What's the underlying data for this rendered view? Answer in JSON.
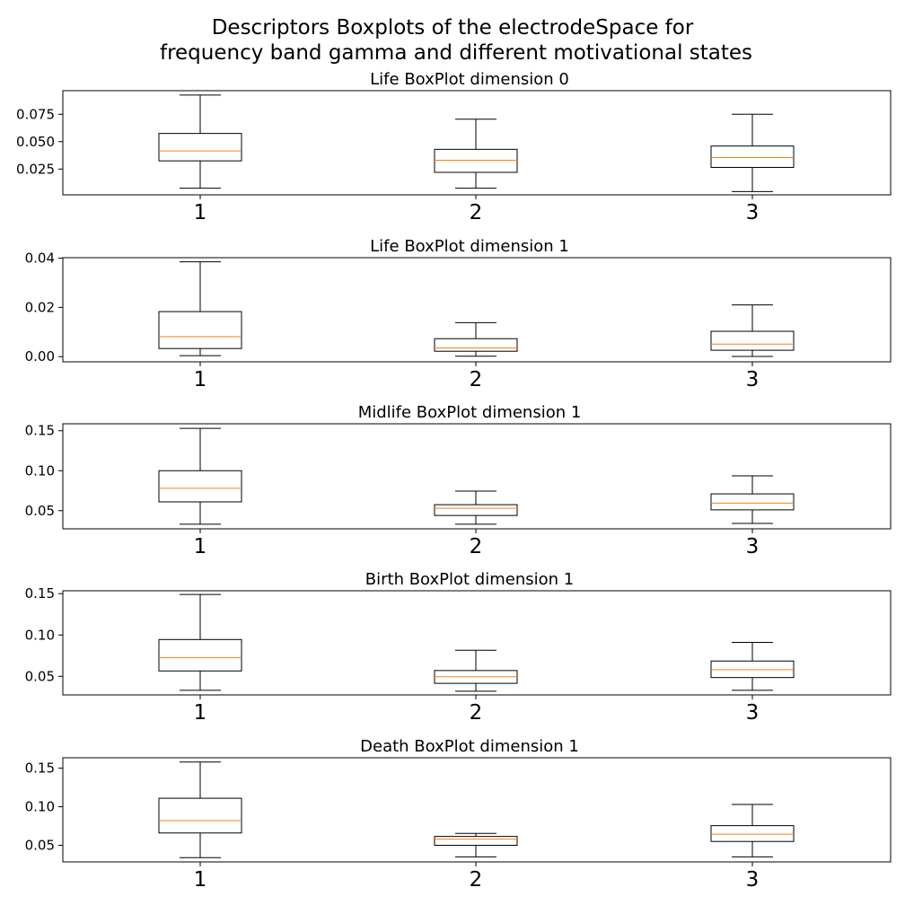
{
  "title_lines": [
    "Descriptors Boxplots of the electrodeSpace for",
    "frequency band gamma and different motivational states"
  ],
  "chart_data": [
    {
      "type": "boxplot",
      "title": "Life BoxPlot dimension 0",
      "categories": [
        "1",
        "2",
        "3"
      ],
      "ylim": [
        0.0015,
        0.0965
      ],
      "yticks": [
        0.025,
        0.05,
        0.075
      ],
      "ytick_labels": [
        "0.025",
        "0.050",
        "0.075"
      ],
      "boxes": [
        {
          "whisker_low": 0.0075,
          "q1": 0.0325,
          "median": 0.0415,
          "q3": 0.0575,
          "whisker_high": 0.0925
        },
        {
          "whisker_low": 0.0075,
          "q1": 0.022,
          "median": 0.033,
          "q3": 0.043,
          "whisker_high": 0.0705
        },
        {
          "whisker_low": 0.0045,
          "q1": 0.0265,
          "median": 0.0355,
          "q3": 0.046,
          "whisker_high": 0.075
        }
      ]
    },
    {
      "type": "boxplot",
      "title": "Life BoxPlot dimension 1",
      "categories": [
        "1",
        "2",
        "3"
      ],
      "ylim": [
        -0.0021,
        0.0402
      ],
      "yticks": [
        0.0,
        0.02,
        0.04
      ],
      "ytick_labels": [
        "0.00",
        "0.02",
        "0.04"
      ],
      "boxes": [
        {
          "whisker_low": 0.0004,
          "q1": 0.0033,
          "median": 0.0081,
          "q3": 0.0183,
          "whisker_high": 0.0385
        },
        {
          "whisker_low": 0.0002,
          "q1": 0.0022,
          "median": 0.0035,
          "q3": 0.0073,
          "whisker_high": 0.0138
        },
        {
          "whisker_low": 0.0001,
          "q1": 0.0026,
          "median": 0.0051,
          "q3": 0.0103,
          "whisker_high": 0.021
        }
      ]
    },
    {
      "type": "boxplot",
      "title": "Midlife BoxPlot dimension 1",
      "categories": [
        "1",
        "2",
        "3"
      ],
      "ylim": [
        0.0273,
        0.1587
      ],
      "yticks": [
        0.05,
        0.1,
        0.15
      ],
      "ytick_labels": [
        "0.05",
        "0.10",
        "0.15"
      ],
      "boxes": [
        {
          "whisker_low": 0.033,
          "q1": 0.061,
          "median": 0.078,
          "q3": 0.1,
          "whisker_high": 0.153
        },
        {
          "whisker_low": 0.033,
          "q1": 0.044,
          "median": 0.053,
          "q3": 0.0575,
          "whisker_high": 0.0745
        },
        {
          "whisker_low": 0.034,
          "q1": 0.051,
          "median": 0.0595,
          "q3": 0.071,
          "whisker_high": 0.0935
        }
      ]
    },
    {
      "type": "boxplot",
      "title": "Birth BoxPlot dimension 1",
      "categories": [
        "1",
        "2",
        "3"
      ],
      "ylim": [
        0.0275,
        0.1535
      ],
      "yticks": [
        0.05,
        0.1,
        0.15
      ],
      "ytick_labels": [
        "0.05",
        "0.10",
        "0.15"
      ],
      "boxes": [
        {
          "whisker_low": 0.033,
          "q1": 0.0565,
          "median": 0.0725,
          "q3": 0.0945,
          "whisker_high": 0.149
        },
        {
          "whisker_low": 0.032,
          "q1": 0.0415,
          "median": 0.0495,
          "q3": 0.057,
          "whisker_high": 0.0815
        },
        {
          "whisker_low": 0.033,
          "q1": 0.0485,
          "median": 0.058,
          "q3": 0.0685,
          "whisker_high": 0.091
        }
      ]
    },
    {
      "type": "boxplot",
      "title": "Death BoxPlot dimension 1",
      "categories": [
        "1",
        "2",
        "3"
      ],
      "ylim": [
        0.0285,
        0.1635
      ],
      "yticks": [
        0.05,
        0.1,
        0.15
      ],
      "ytick_labels": [
        "0.05",
        "0.10",
        "0.15"
      ],
      "boxes": [
        {
          "whisker_low": 0.034,
          "q1": 0.066,
          "median": 0.082,
          "q3": 0.111,
          "whisker_high": 0.158
        },
        {
          "whisker_low": 0.035,
          "q1": 0.05,
          "median": 0.058,
          "q3": 0.0615,
          "whisker_high": 0.0655
        },
        {
          "whisker_low": 0.035,
          "q1": 0.055,
          "median": 0.0645,
          "q3": 0.0755,
          "whisker_high": 0.103
        }
      ]
    }
  ],
  "colors": {
    "box": "#000000",
    "whisker": "#000000",
    "median": "#ff7f0e",
    "axes": "#000000",
    "background": "#ffffff"
  }
}
